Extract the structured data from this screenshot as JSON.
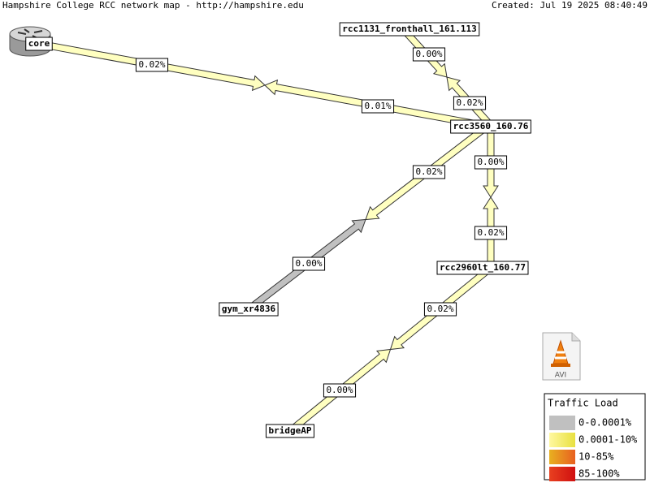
{
  "header": {
    "title": "Hampshire College RCC network map - http://hampshire.edu",
    "created": "Created: Jul 19 2025 08:40:49"
  },
  "nodes": [
    {
      "label": "core"
    },
    {
      "label": "rcc1131_fronthall_161.113"
    },
    {
      "label": "rcc3560_160.76"
    },
    {
      "label": "rcc2960lt_160.77"
    },
    {
      "label": "gym_xr4836"
    },
    {
      "label": "bridgeAP"
    }
  ],
  "links": [
    {
      "out_label": "0.02%",
      "in_label": "0.01%"
    },
    {
      "out_label": "0.00%",
      "in_label": "0.02%"
    },
    {
      "out_label": "0.00%",
      "in_label": "0.02%"
    },
    {
      "out_label": "0.02%",
      "in_label": "0.00%"
    },
    {
      "out_label": "0.02%",
      "in_label": "0.00%"
    }
  ],
  "legend": {
    "title": "Traffic Load",
    "items": [
      "0-0.0001%",
      "0.0001-10%",
      "10-85%",
      "85-100%"
    ]
  },
  "icon": {
    "label": "AVI"
  }
}
